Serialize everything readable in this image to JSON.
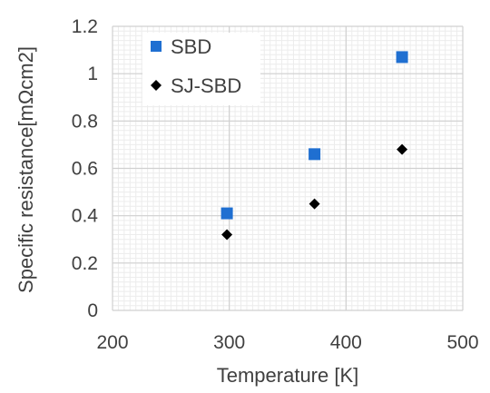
{
  "chart_data": {
    "type": "scatter",
    "title": "",
    "xlabel": "Temperature [K]",
    "ylabel": "Specific resistance[mΩcm2]",
    "xlim": [
      200,
      500
    ],
    "ylim": [
      0,
      1.2
    ],
    "x_ticks": [
      "200",
      "300",
      "400",
      "500"
    ],
    "y_ticks": [
      "0",
      "0.2",
      "0.4",
      "0.6",
      "0.8",
      "1",
      "1.2"
    ],
    "grid": true,
    "legend_position": "top-left",
    "series": [
      {
        "name": "SBD",
        "marker": "square",
        "color": "#1f6fd1",
        "x": [
          298,
          373,
          448
        ],
        "y": [
          0.41,
          0.66,
          1.07
        ]
      },
      {
        "name": "SJ-SBD",
        "marker": "diamond",
        "color": "#000000",
        "x": [
          298,
          373,
          448
        ],
        "y": [
          0.32,
          0.45,
          0.68
        ]
      }
    ]
  }
}
